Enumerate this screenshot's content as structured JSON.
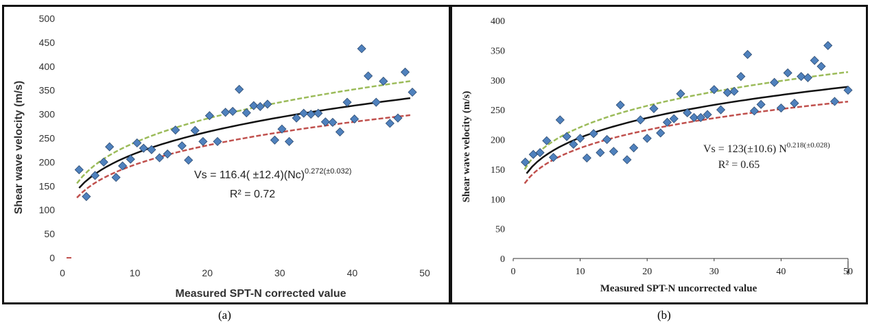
{
  "panels": [
    {
      "caption": "(a)",
      "equation": "Vs = 116.4( ±12.4)(Nc)",
      "equation_exp": "0.272(±0.032)",
      "r2": "R² = 0.72"
    },
    {
      "caption": "(b)",
      "equation": "Vs = 123(±10.6) N",
      "equation_exp": "0.218(±0.028)",
      "r2": "R² = 0.65"
    }
  ],
  "chart_data": [
    {
      "type": "scatter",
      "xlabel": "Measured SPT-N corrected value",
      "ylabel": "Shear wave velocity (m/s)",
      "xlim": [
        0,
        50
      ],
      "ylim": [
        0,
        500
      ],
      "xticks": [
        "0",
        "10",
        "20",
        "30",
        "40",
        "50"
      ],
      "yticks": [
        "0",
        "50",
        "100",
        "150",
        "200",
        "250",
        "300",
        "350",
        "400",
        "450",
        "500"
      ],
      "grid": false,
      "points": [
        [
          2.3,
          184
        ],
        [
          3.3,
          128
        ],
        [
          4.5,
          172
        ],
        [
          5.7,
          200
        ],
        [
          6.5,
          232
        ],
        [
          7.4,
          168
        ],
        [
          8.3,
          192
        ],
        [
          9.4,
          206
        ],
        [
          10.3,
          240
        ],
        [
          11.2,
          229
        ],
        [
          12.3,
          226
        ],
        [
          13.4,
          209
        ],
        [
          14.5,
          217
        ],
        [
          15.6,
          267
        ],
        [
          16.5,
          234
        ],
        [
          17.4,
          204
        ],
        [
          18.3,
          266
        ],
        [
          19.4,
          243
        ],
        [
          20.3,
          297
        ],
        [
          21.4,
          243
        ],
        [
          22.5,
          304
        ],
        [
          23.5,
          306
        ],
        [
          24.4,
          352
        ],
        [
          25.4,
          303
        ],
        [
          26.4,
          318
        ],
        [
          27.3,
          316
        ],
        [
          28.3,
          321
        ],
        [
          29.3,
          246
        ],
        [
          30.3,
          269
        ],
        [
          31.3,
          243
        ],
        [
          32.3,
          292
        ],
        [
          33.3,
          302
        ],
        [
          34.3,
          300
        ],
        [
          35.3,
          302
        ],
        [
          36.3,
          284
        ],
        [
          37.3,
          283
        ],
        [
          38.3,
          263
        ],
        [
          39.3,
          325
        ],
        [
          40.3,
          290
        ],
        [
          41.3,
          437
        ],
        [
          42.2,
          380
        ],
        [
          43.3,
          325
        ],
        [
          44.3,
          369
        ],
        [
          45.2,
          281
        ],
        [
          46.3,
          292
        ],
        [
          47.3,
          388
        ],
        [
          48.3,
          346
        ]
      ],
      "fit": {
        "a": 116.4,
        "b": 0.272,
        "x_range": [
          2.3,
          48
        ]
      },
      "upper_bound": {
        "a": 128.8,
        "b": 0.272,
        "color": "#9bbb59"
      },
      "lower_bound": {
        "a": 104.0,
        "b": 0.272,
        "color": "#c0504d"
      },
      "marker_color": "#4f81bd"
    },
    {
      "type": "scatter",
      "xlabel": "Measured SPT-N uncorrected value",
      "ylabel": "Shear wave velocity (m/s)",
      "xlim": [
        0,
        50
      ],
      "ylim": [
        0,
        400
      ],
      "xticks": [
        "0",
        "10",
        "20",
        "30",
        "40",
        "50"
      ],
      "yticks": [
        "0",
        "50",
        "100",
        "150",
        "200",
        "250",
        "300",
        "350",
        "400"
      ],
      "grid": false,
      "points": [
        [
          1.8,
          162
        ],
        [
          3,
          175
        ],
        [
          4,
          178
        ],
        [
          5,
          198
        ],
        [
          6,
          170
        ],
        [
          7,
          233
        ],
        [
          8,
          205
        ],
        [
          9,
          192
        ],
        [
          10,
          202
        ],
        [
          11,
          169
        ],
        [
          12,
          210
        ],
        [
          13,
          178
        ],
        [
          14,
          200
        ],
        [
          15,
          180
        ],
        [
          16,
          258
        ],
        [
          17,
          166
        ],
        [
          18,
          186
        ],
        [
          19,
          233
        ],
        [
          20,
          202
        ],
        [
          21,
          252
        ],
        [
          22,
          211
        ],
        [
          23,
          229
        ],
        [
          24,
          235
        ],
        [
          25,
          277
        ],
        [
          26,
          245
        ],
        [
          27,
          237
        ],
        [
          28,
          237
        ],
        [
          29,
          242
        ],
        [
          30,
          284
        ],
        [
          31,
          250
        ],
        [
          32,
          279
        ],
        [
          33,
          281
        ],
        [
          34,
          306
        ],
        [
          35,
          343
        ],
        [
          36,
          248
        ],
        [
          37,
          259
        ],
        [
          39,
          296
        ],
        [
          40,
          253
        ],
        [
          41,
          312
        ],
        [
          42,
          261
        ],
        [
          43,
          306
        ],
        [
          44,
          304
        ],
        [
          45,
          333
        ],
        [
          46,
          323
        ],
        [
          47,
          358
        ],
        [
          48,
          264
        ],
        [
          50,
          283
        ]
      ],
      "fit": {
        "a": 123,
        "b": 0.218,
        "x_range": [
          2,
          50
        ]
      },
      "upper_bound": {
        "a": 133.6,
        "b": 0.218,
        "color": "#9bbb59"
      },
      "lower_bound": {
        "a": 112.4,
        "b": 0.218,
        "color": "#c0504d"
      },
      "marker_color": "#4f81bd"
    }
  ]
}
